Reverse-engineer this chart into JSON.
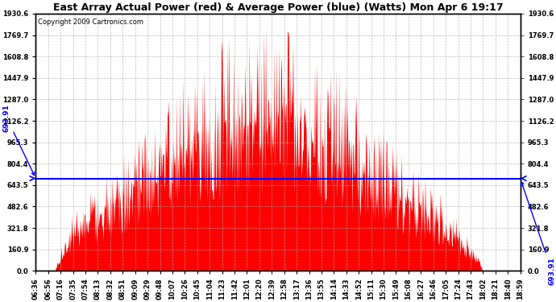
{
  "title": "East Array Actual Power (red) & Average Power (blue) (Watts) Mon Apr 6 19:17",
  "copyright": "Copyright 2009 Cartronics.com",
  "avg_power": 693.91,
  "ymin": 0.0,
  "ymax": 1930.6,
  "yticks": [
    0.0,
    160.9,
    321.8,
    482.6,
    643.5,
    804.4,
    965.3,
    1126.2,
    1287.0,
    1447.9,
    1608.8,
    1769.7,
    1930.6
  ],
  "xtick_labels": [
    "06:36",
    "06:56",
    "07:16",
    "07:35",
    "07:54",
    "08:13",
    "08:32",
    "08:51",
    "09:09",
    "09:29",
    "09:48",
    "10:07",
    "10:26",
    "10:45",
    "11:04",
    "11:23",
    "11:42",
    "12:01",
    "12:20",
    "12:39",
    "12:58",
    "13:17",
    "13:36",
    "13:55",
    "14:14",
    "14:33",
    "14:52",
    "15:11",
    "15:30",
    "15:49",
    "16:08",
    "16:27",
    "16:46",
    "17:05",
    "17:24",
    "17:43",
    "18:02",
    "18:21",
    "18:40",
    "18:59"
  ],
  "fill_color": "#FF0000",
  "line_color": "#0000FF",
  "bg_color": "#FFFFFF",
  "grid_color": "#AAAAAA",
  "title_fontsize": 9,
  "copyright_fontsize": 6,
  "tick_fontsize": 6,
  "avg_label": "693.91"
}
